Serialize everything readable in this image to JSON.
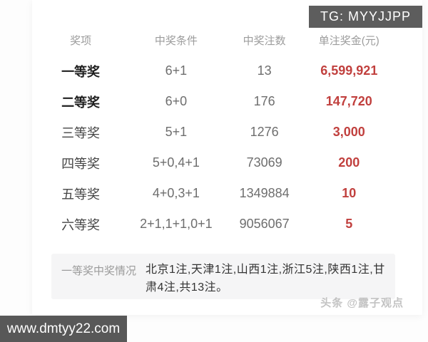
{
  "badge": {
    "tg": "TG: MYYJJPP"
  },
  "table": {
    "headers": [
      "奖项",
      "中奖条件",
      "中奖注数",
      "单注奖金(元)"
    ],
    "rows": [
      {
        "name": "一等奖",
        "condition": "6+1",
        "count": "13",
        "prize": "6,599,921"
      },
      {
        "name": "二等奖",
        "condition": "6+0",
        "count": "176",
        "prize": "147,720"
      },
      {
        "name": "三等奖",
        "condition": "5+1",
        "count": "1276",
        "prize": "3,000"
      },
      {
        "name": "四等奖",
        "condition": "5+0,4+1",
        "count": "73069",
        "prize": "200"
      },
      {
        "name": "五等奖",
        "condition": "4+0,3+1",
        "count": "1349884",
        "prize": "10"
      },
      {
        "name": "六等奖",
        "condition": "2+1,1+1,0+1",
        "count": "9056067",
        "prize": "5"
      }
    ]
  },
  "summary": {
    "label": "一等奖中奖情况",
    "text": "北京1注,天津1注,山西1注,浙江5注,陕西1注,甘肃4注,共13注。"
  },
  "credit": "头条 @露子观点",
  "watermark": "www.dmtyy22.com",
  "colors": {
    "prize_red": "#c1403e",
    "badge_bg": "#5d5d5d",
    "ribbon_bg": "#585858",
    "panel_bg": "#f5f5f6"
  }
}
